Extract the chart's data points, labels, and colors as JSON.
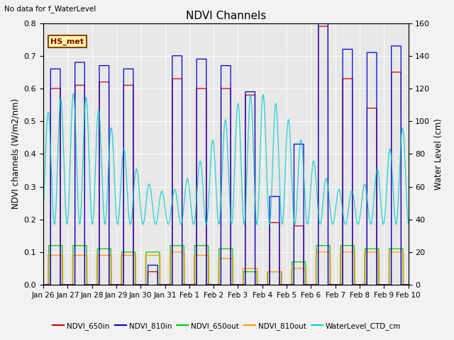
{
  "title": "NDVI Channels",
  "subtitle": "No data for f_WaterLevel",
  "ylabel_left": "NDVI channels (W/m2/nm)",
  "ylabel_right": "Water Level (cm)",
  "ylim_left": [
    0.0,
    0.8
  ],
  "ylim_right": [
    0,
    160
  ],
  "yticks_left": [
    0.0,
    0.1,
    0.2,
    0.3,
    0.4,
    0.5,
    0.6,
    0.7,
    0.8
  ],
  "yticks_right": [
    0,
    20,
    40,
    60,
    80,
    100,
    120,
    140,
    160
  ],
  "annotation_box": "HS_met",
  "background_color": "#f2f2f2",
  "plot_bg_color": "#e8e8e8",
  "series_colors": {
    "NDVI_650in": "#cc0000",
    "NDVI_810in": "#0000cc",
    "NDVI_650out": "#00cc00",
    "NDVI_810out": "#ff9900",
    "WaterLevel_CTD_cm": "#00cccc"
  },
  "tick_labels": [
    "Jan 26",
    "Jan 27",
    "Jan 28",
    "Jan 29",
    "Jan 30",
    "Jan 31",
    "Feb 1",
    "Feb 2",
    "Feb 3",
    "Feb 4",
    "Feb 5",
    "Feb 6",
    "Feb 7",
    "Feb 8",
    "Feb 9",
    "Feb 10"
  ],
  "legend_labels": [
    "NDVI_650in",
    "NDVI_810in",
    "NDVI_650out",
    "NDVI_810out",
    "WaterLevel_CTD_cm"
  ]
}
